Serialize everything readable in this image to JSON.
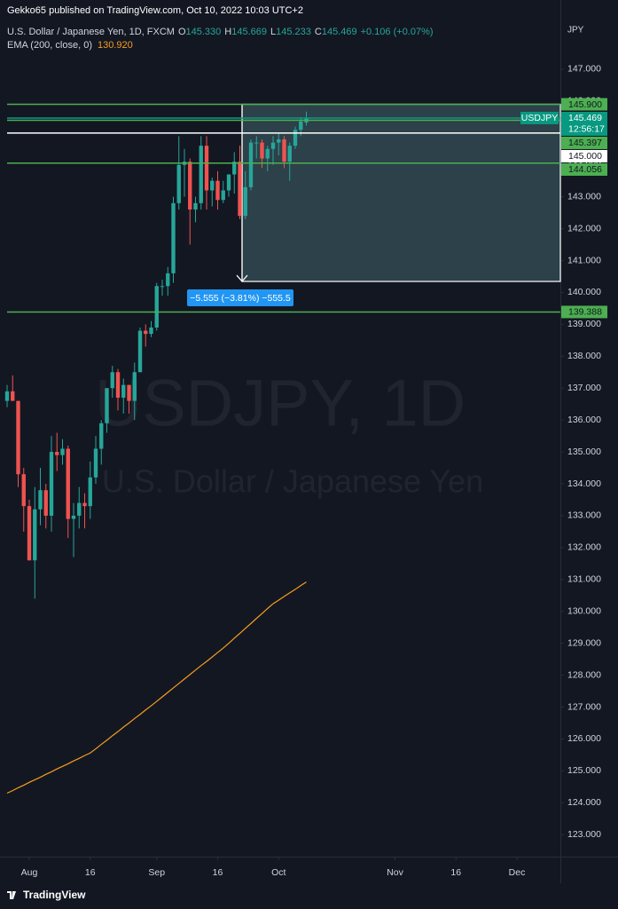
{
  "header": {
    "publisher": "Gekko65 published on TradingView.com, Oct 10, 2022 10:03 UTC+2",
    "footer": "TradingView"
  },
  "chart_data": {
    "type": "candlestick",
    "symbol_line": "U.S. Dollar / Japanese Yen, 1D, FXCM",
    "ohlc_legend": [
      {
        "key": "O",
        "text": "145.330"
      },
      {
        "key": "H",
        "text": "145.669"
      },
      {
        "key": "L",
        "text": "145.233"
      },
      {
        "key": "C",
        "text": "145.469"
      }
    ],
    "change_legend": "+0.106 (+0.07%)",
    "watermark": "USDJPY, 1D",
    "watermark_sub": "U.S. Dollar / Japanese Yen",
    "y_axis_title": "JPY",
    "up_color": "#26a69a",
    "down_color": "#ef5350",
    "ohlc": [
      [
        136.6,
        137.1,
        136.4,
        136.9
      ],
      [
        136.9,
        137.4,
        136.6,
        136.6
      ],
      [
        136.6,
        136.6,
        133.9,
        134.3
      ],
      [
        134.3,
        134.5,
        132.5,
        133.3
      ],
      [
        133.3,
        133.5,
        131.6,
        131.6
      ],
      [
        131.6,
        133.9,
        130.4,
        133.2
      ],
      [
        133.2,
        134.5,
        132.7,
        133.8
      ],
      [
        133.8,
        134.0,
        132.6,
        133.0
      ],
      [
        133.0,
        135.5,
        132.5,
        135.0
      ],
      [
        135.0,
        135.6,
        134.4,
        134.9
      ],
      [
        134.9,
        135.4,
        134.6,
        135.1
      ],
      [
        135.1,
        135.2,
        132.3,
        132.9
      ],
      [
        132.9,
        133.4,
        131.7,
        133.0
      ],
      [
        133.0,
        133.9,
        132.6,
        133.4
      ],
      [
        133.4,
        133.7,
        132.6,
        133.3
      ],
      [
        133.3,
        134.7,
        132.9,
        134.2
      ],
      [
        134.2,
        135.5,
        134.0,
        135.1
      ],
      [
        135.1,
        136.0,
        134.6,
        135.9
      ],
      [
        135.9,
        137.0,
        135.6,
        137.0
      ],
      [
        137.0,
        137.7,
        136.7,
        137.5
      ],
      [
        137.5,
        137.6,
        136.3,
        136.7
      ],
      [
        136.7,
        137.3,
        136.2,
        137.1
      ],
      [
        137.1,
        137.1,
        136.2,
        136.6
      ],
      [
        136.6,
        137.8,
        136.0,
        137.5
      ],
      [
        137.5,
        138.9,
        137.5,
        138.8
      ],
      [
        138.8,
        139.0,
        138.3,
        138.7
      ],
      [
        138.7,
        139.1,
        138.6,
        138.9
      ],
      [
        138.9,
        140.3,
        138.8,
        140.2
      ],
      [
        140.2,
        140.4,
        139.9,
        140.2
      ],
      [
        140.2,
        140.8,
        139.9,
        140.6
      ],
      [
        140.6,
        143.0,
        140.3,
        142.8
      ],
      [
        142.8,
        144.9,
        142.6,
        144.0
      ],
      [
        144.0,
        144.5,
        143.0,
        144.1
      ],
      [
        144.1,
        144.2,
        141.5,
        142.6
      ],
      [
        142.6,
        143.0,
        142.2,
        142.8
      ],
      [
        142.8,
        144.9,
        142.6,
        144.6
      ],
      [
        144.6,
        144.9,
        142.6,
        143.2
      ],
      [
        143.2,
        143.6,
        142.7,
        143.5
      ],
      [
        143.5,
        143.8,
        142.6,
        142.9
      ],
      [
        142.9,
        143.5,
        142.8,
        143.2
      ],
      [
        143.2,
        143.7,
        143.0,
        143.7
      ],
      [
        143.7,
        144.4,
        143.1,
        144.1
      ],
      [
        144.1,
        144.6,
        142.3,
        142.4
      ],
      [
        142.4,
        143.8,
        142.3,
        143.3
      ],
      [
        143.3,
        144.8,
        143.2,
        144.7
      ],
      [
        144.7,
        144.9,
        144.2,
        144.7
      ],
      [
        144.7,
        144.8,
        143.9,
        144.2
      ],
      [
        144.2,
        144.6,
        143.8,
        144.5
      ],
      [
        144.5,
        144.9,
        144.0,
        144.7
      ],
      [
        144.7,
        145.0,
        144.3,
        144.8
      ],
      [
        144.8,
        144.9,
        143.9,
        144.1
      ],
      [
        144.1,
        144.7,
        143.5,
        144.6
      ],
      [
        144.6,
        145.2,
        144.5,
        145.1
      ],
      [
        145.1,
        145.5,
        144.9,
        145.363
      ],
      [
        145.33,
        145.669,
        145.233,
        145.469
      ]
    ],
    "ema": {
      "name": "EMA (200, close, 0)",
      "last": "130.920",
      "color": "#f59d1f",
      "values": [
        124.3,
        124.38,
        124.47,
        124.55,
        124.64,
        124.72,
        124.8,
        124.89,
        124.97,
        125.06,
        125.14,
        125.22,
        125.31,
        125.39,
        125.48,
        125.56,
        125.69,
        125.83,
        125.96,
        126.1,
        126.23,
        126.37,
        126.5,
        126.64,
        126.77,
        126.91,
        127.04,
        127.18,
        127.32,
        127.46,
        127.6,
        127.74,
        127.88,
        128.02,
        128.16,
        128.3,
        128.43,
        128.57,
        128.71,
        128.85,
        129.0,
        129.16,
        129.31,
        129.47,
        129.62,
        129.78,
        129.93,
        130.09,
        130.24,
        130.35,
        130.47,
        130.58,
        130.69,
        130.81,
        130.92
      ]
    },
    "xlim": [
      -1.28,
      99.84
    ],
    "xticks": [
      {
        "value": 4,
        "label": "Aug"
      },
      {
        "value": 15,
        "label": "16"
      },
      {
        "value": 27,
        "label": "Sep"
      },
      {
        "value": 38,
        "label": "16"
      },
      {
        "value": 49,
        "label": "Oct"
      },
      {
        "value": 70,
        "label": "Nov"
      },
      {
        "value": 81,
        "label": "16"
      },
      {
        "value": 92,
        "label": "Dec"
      }
    ],
    "ylim": [
      122.31,
      149.17
    ],
    "yticks": [
      {
        "value": 123,
        "label": "123.000"
      },
      {
        "value": 124,
        "label": "124.000"
      },
      {
        "value": 125,
        "label": "125.000"
      },
      {
        "value": 126,
        "label": "126.000"
      },
      {
        "value": 127,
        "label": "127.000"
      },
      {
        "value": 128,
        "label": "128.000"
      },
      {
        "value": 129,
        "label": "129.000"
      },
      {
        "value": 130,
        "label": "130.000"
      },
      {
        "value": 131,
        "label": "131.000"
      },
      {
        "value": 132,
        "label": "132.000"
      },
      {
        "value": 133,
        "label": "133.000"
      },
      {
        "value": 134,
        "label": "134.000"
      },
      {
        "value": 135,
        "label": "135.000"
      },
      {
        "value": 136,
        "label": "136.000"
      },
      {
        "value": 137,
        "label": "137.000"
      },
      {
        "value": 138,
        "label": "138.000"
      },
      {
        "value": 139,
        "label": "139.000"
      },
      {
        "value": 140,
        "label": "140.000"
      },
      {
        "value": 141,
        "label": "141.000"
      },
      {
        "value": 142,
        "label": "142.000"
      },
      {
        "value": 143,
        "label": "143.000"
      },
      {
        "value": 144,
        "label": "144.000"
      },
      {
        "value": 145,
        "label": "145.000"
      },
      {
        "value": 146,
        "label": "146.000"
      },
      {
        "value": 147,
        "label": "147.000"
      }
    ],
    "hlines": [
      {
        "value": 145.9,
        "label": "145.900",
        "color": "#4caf50"
      },
      {
        "value": 145.397,
        "color": "#4caf50"
      },
      {
        "value": 145,
        "label": "145.000",
        "color": "#ffffff"
      },
      {
        "value": 144.056,
        "color": "#4caf50"
      },
      {
        "value": 139.388,
        "color": "#4caf50"
      }
    ],
    "last_price": {
      "value": 145.469,
      "symbol": "USDJPY",
      "countdown": "12:56:17",
      "color": "#089981"
    },
    "measure": {
      "start": 42.4,
      "from": 145.9,
      "to": 140.345,
      "label": "−5.555 (−3.81%) −555.5"
    }
  }
}
